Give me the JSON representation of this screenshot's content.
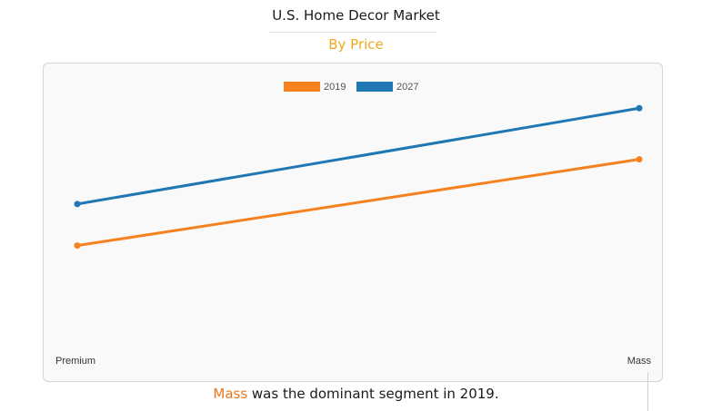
{
  "chart_data": {
    "type": "line",
    "title": "U.S. Home Decor Market",
    "subtitle": "By Price",
    "categories": [
      "Premium",
      "Mass"
    ],
    "series": [
      {
        "name": "2019",
        "values": [
          43,
          70
        ],
        "color": "#f5821f"
      },
      {
        "name": "2027",
        "values": [
          56,
          86
        ],
        "color": "#1f77b4"
      }
    ],
    "ylim": [
      0,
      100
    ],
    "grid": false,
    "legend": "top-center"
  },
  "caption": {
    "highlight": "Mass",
    "rest": " was the dominant segment in 2019."
  }
}
